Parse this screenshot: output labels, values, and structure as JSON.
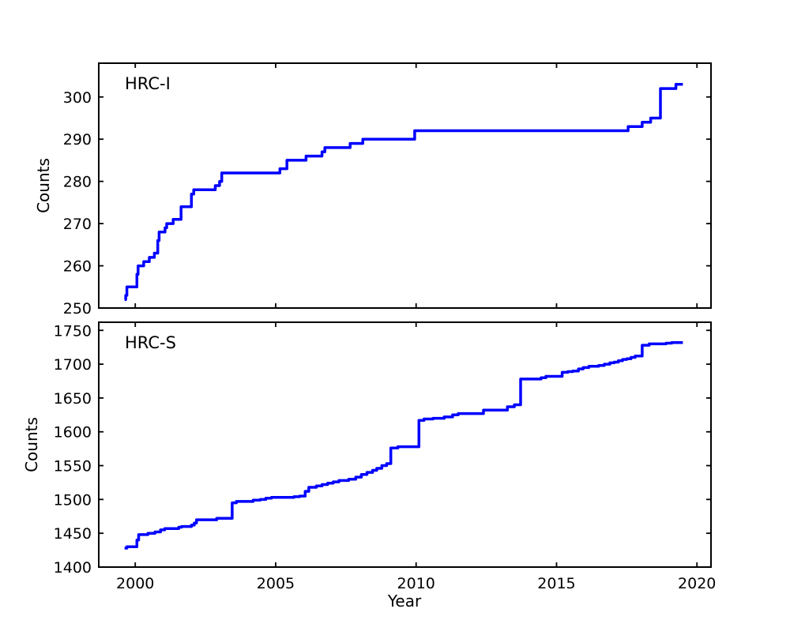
{
  "figure": {
    "background": "#ffffff",
    "axis_color": "#000000",
    "line_color": "#0000ff",
    "xlabel": "Year"
  },
  "chart_data": [
    {
      "type": "line",
      "style": "step",
      "label": "HRC-I",
      "ylabel": "Counts",
      "legend": "none",
      "grid": false,
      "xlim": [
        1998.7,
        2020.5
      ],
      "ylim": [
        250,
        308
      ],
      "xticks": [
        2000,
        2005,
        2010,
        2015,
        2020
      ],
      "xtick_labels_visible": false,
      "yticks": [
        250,
        260,
        270,
        280,
        290,
        300
      ],
      "points": [
        [
          1999.62,
          252
        ],
        [
          1999.66,
          253
        ],
        [
          1999.7,
          255
        ],
        [
          2000.06,
          258
        ],
        [
          2000.1,
          260
        ],
        [
          2000.3,
          261
        ],
        [
          2000.5,
          262
        ],
        [
          2000.68,
          263
        ],
        [
          2000.8,
          266
        ],
        [
          2000.85,
          268
        ],
        [
          2001.06,
          269
        ],
        [
          2001.12,
          270
        ],
        [
          2001.35,
          271
        ],
        [
          2001.63,
          274
        ],
        [
          2002.0,
          277
        ],
        [
          2002.08,
          278
        ],
        [
          2002.85,
          279
        ],
        [
          2003.0,
          280
        ],
        [
          2003.08,
          282
        ],
        [
          2005.15,
          283
        ],
        [
          2005.4,
          285
        ],
        [
          2006.08,
          286
        ],
        [
          2006.65,
          287
        ],
        [
          2006.75,
          288
        ],
        [
          2007.65,
          289
        ],
        [
          2008.1,
          290
        ],
        [
          2009.95,
          292
        ],
        [
          2017.55,
          293
        ],
        [
          2018.05,
          294
        ],
        [
          2018.35,
          295
        ],
        [
          2018.7,
          302
        ],
        [
          2019.25,
          303
        ],
        [
          2019.5,
          303
        ]
      ]
    },
    {
      "type": "line",
      "style": "step",
      "label": "HRC-S",
      "ylabel": "Counts",
      "legend": "none",
      "grid": false,
      "xlim": [
        1998.7,
        2020.5
      ],
      "ylim": [
        1400,
        1762
      ],
      "xticks": [
        2000,
        2005,
        2010,
        2015,
        2020
      ],
      "xtick_labels_visible": true,
      "yticks": [
        1400,
        1450,
        1500,
        1550,
        1600,
        1650,
        1700,
        1750
      ],
      "points": [
        [
          1999.62,
          1428
        ],
        [
          1999.7,
          1430
        ],
        [
          2000.06,
          1440
        ],
        [
          2000.12,
          1448
        ],
        [
          2000.45,
          1450
        ],
        [
          2000.7,
          1452
        ],
        [
          2000.9,
          1455
        ],
        [
          2001.05,
          1457
        ],
        [
          2001.55,
          1459
        ],
        [
          2001.65,
          1460
        ],
        [
          2002.0,
          1462
        ],
        [
          2002.1,
          1465
        ],
        [
          2002.18,
          1470
        ],
        [
          2002.9,
          1472
        ],
        [
          2003.45,
          1495
        ],
        [
          2003.6,
          1497
        ],
        [
          2004.2,
          1499
        ],
        [
          2004.45,
          1500
        ],
        [
          2004.65,
          1502
        ],
        [
          2004.85,
          1503
        ],
        [
          2005.65,
          1504
        ],
        [
          2005.85,
          1505
        ],
        [
          2006.05,
          1512
        ],
        [
          2006.18,
          1518
        ],
        [
          2006.45,
          1520
        ],
        [
          2006.65,
          1522
        ],
        [
          2006.85,
          1524
        ],
        [
          2007.05,
          1526
        ],
        [
          2007.25,
          1528
        ],
        [
          2007.6,
          1530
        ],
        [
          2007.85,
          1533
        ],
        [
          2008.05,
          1537
        ],
        [
          2008.25,
          1540
        ],
        [
          2008.45,
          1543
        ],
        [
          2008.6,
          1546
        ],
        [
          2008.78,
          1550
        ],
        [
          2008.95,
          1553
        ],
        [
          2009.1,
          1576
        ],
        [
          2009.35,
          1578
        ],
        [
          2010.1,
          1617
        ],
        [
          2010.28,
          1619
        ],
        [
          2010.6,
          1620
        ],
        [
          2011.0,
          1622
        ],
        [
          2011.3,
          1625
        ],
        [
          2011.5,
          1627
        ],
        [
          2012.4,
          1632
        ],
        [
          2013.25,
          1637
        ],
        [
          2013.5,
          1640
        ],
        [
          2013.72,
          1678
        ],
        [
          2014.45,
          1680
        ],
        [
          2014.62,
          1682
        ],
        [
          2015.2,
          1688
        ],
        [
          2015.4,
          1689
        ],
        [
          2015.58,
          1690
        ],
        [
          2015.78,
          1693
        ],
        [
          2015.95,
          1695
        ],
        [
          2016.15,
          1697
        ],
        [
          2016.5,
          1698
        ],
        [
          2016.7,
          1700
        ],
        [
          2016.9,
          1702
        ],
        [
          2017.05,
          1703
        ],
        [
          2017.2,
          1705
        ],
        [
          2017.35,
          1707
        ],
        [
          2017.5,
          1708
        ],
        [
          2017.65,
          1710
        ],
        [
          2017.8,
          1712
        ],
        [
          2018.05,
          1728
        ],
        [
          2018.3,
          1730
        ],
        [
          2018.9,
          1731
        ],
        [
          2019.1,
          1732
        ],
        [
          2019.5,
          1732
        ]
      ]
    }
  ]
}
